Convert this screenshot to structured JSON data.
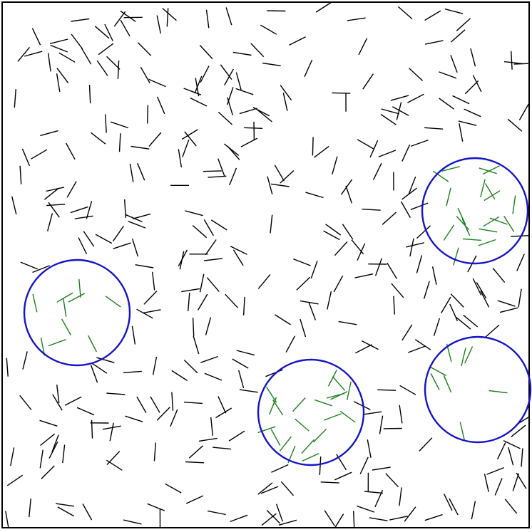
{
  "colors": {
    "background": "#ffffff",
    "frame": "#000000",
    "segment_outside": "#000000",
    "segment_inside": "#1a7f1a",
    "circle": "#1414c8"
  },
  "circle_count": 4,
  "segment_count_approx": 420,
  "note_visible_text": ""
}
